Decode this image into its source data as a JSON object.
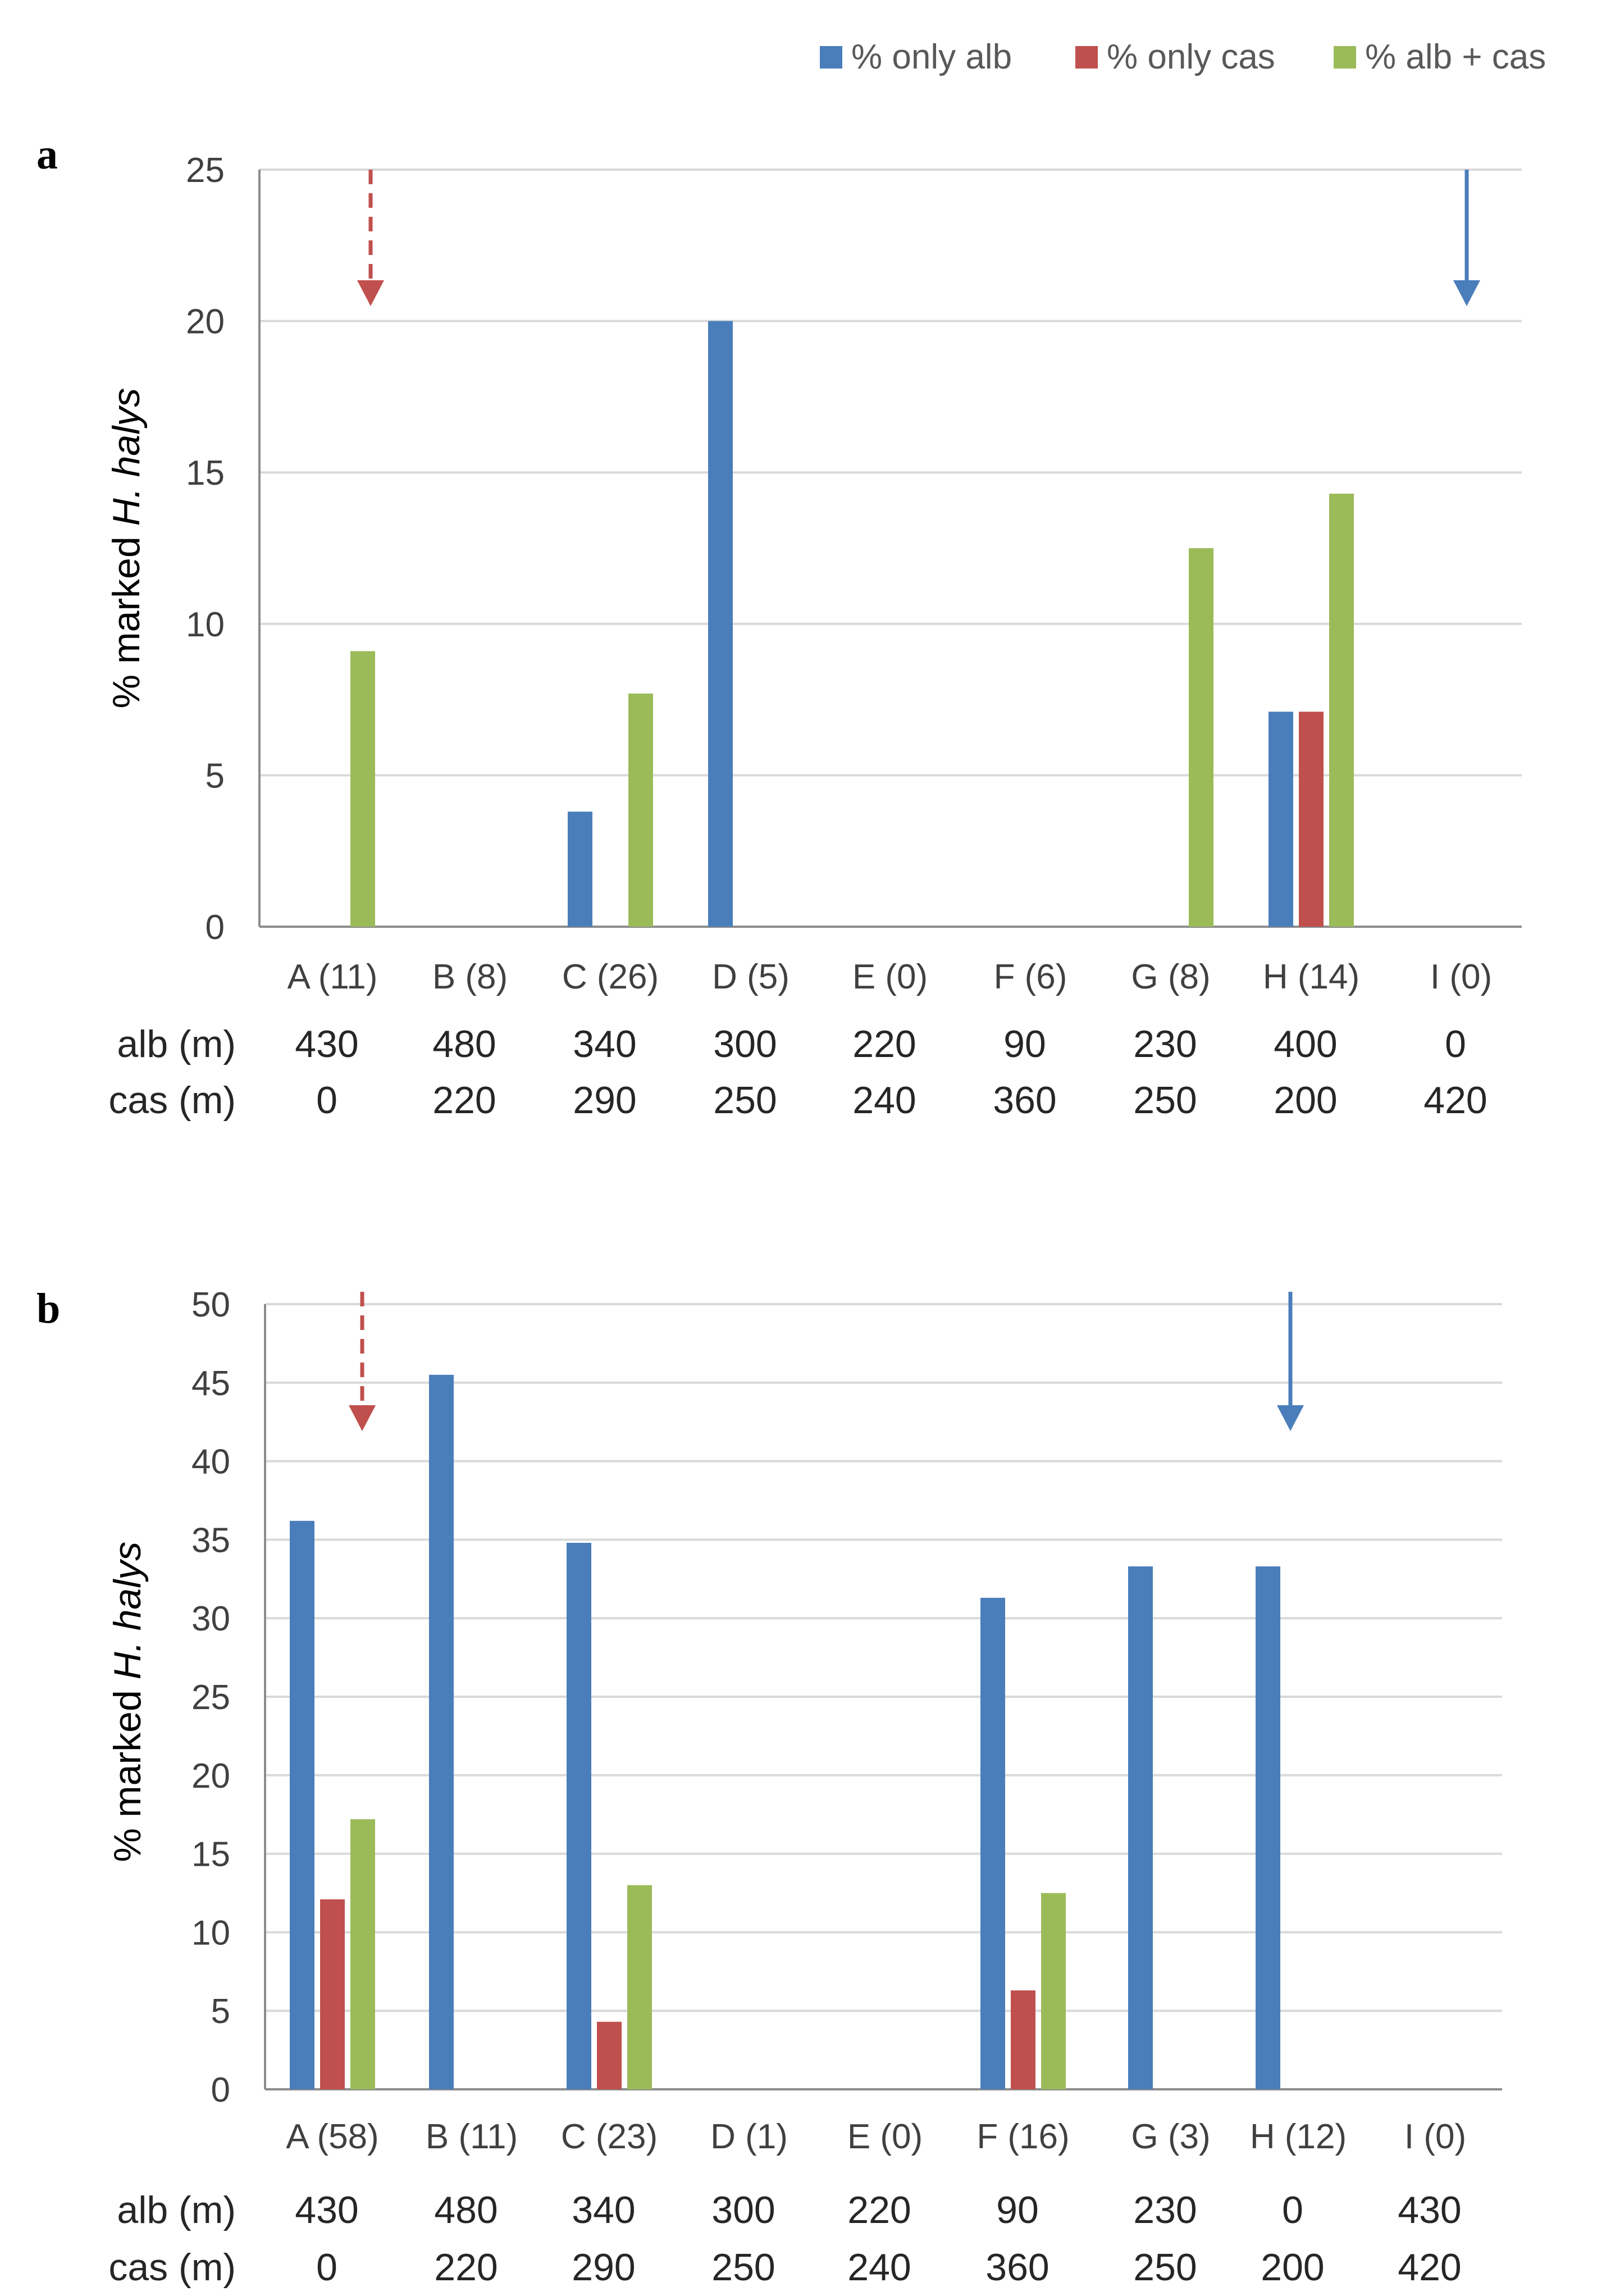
{
  "legend": [
    {
      "label": "% only alb",
      "color": "#4a7ebb"
    },
    {
      "label": "% only cas",
      "color": "#c0504d"
    },
    {
      "label": "% alb + cas",
      "color": "#9bbb59"
    }
  ],
  "arrow_colors": {
    "cas_origin": "#c0504d",
    "alb_origin": "#4a7ebb"
  },
  "chart_data": [
    {
      "panel": "a",
      "type": "bar",
      "ylabel_prefix": "% marked ",
      "ylabel_species": "H. halys",
      "ylim": [
        0,
        25
      ],
      "yticks": [
        "0",
        "5",
        "10",
        "15",
        "20",
        "25"
      ],
      "grid": true,
      "legend_position": "top-right",
      "categories": [
        "A (11)",
        "B (8)",
        "C (26)",
        "D (5)",
        "E (0)",
        "F (6)",
        "G (8)",
        "H (14)",
        "I (0)"
      ],
      "series": [
        {
          "name": "% only alb",
          "values": [
            0,
            0,
            3.8,
            20,
            0,
            0,
            0,
            7.1,
            0
          ]
        },
        {
          "name": "% only cas",
          "values": [
            0,
            0,
            0,
            0,
            0,
            0,
            0,
            7.1,
            0
          ]
        },
        {
          "name": "% alb + cas",
          "values": [
            9.1,
            0,
            7.7,
            0,
            0,
            0,
            12.5,
            14.3,
            0
          ]
        }
      ],
      "distances": [
        {
          "label": "alb (m)",
          "values": [
            "430",
            "480",
            "340",
            "300",
            "220",
            "90",
            "230",
            "400",
            "0"
          ]
        },
        {
          "label": "cas (m)",
          "values": [
            "0",
            "220",
            "290",
            "250",
            "240",
            "360",
            "250",
            "200",
            "420"
          ]
        }
      ],
      "arrows": [
        {
          "category": "A (11)",
          "kind": "cas",
          "style": "dashed"
        },
        {
          "category": "I (0)",
          "kind": "alb",
          "style": "solid"
        }
      ]
    },
    {
      "panel": "b",
      "type": "bar",
      "ylabel_prefix": "% marked ",
      "ylabel_species": "H. halys",
      "ylim": [
        0,
        50
      ],
      "yticks": [
        "0",
        "5",
        "10",
        "15",
        "20",
        "25",
        "30",
        "35",
        "40",
        "45",
        "50"
      ],
      "grid": true,
      "categories": [
        "A (58)",
        "B (11)",
        "C (23)",
        "D (1)",
        "E (0)",
        "F (16)",
        "G (3)",
        "H (12)",
        "I (0)"
      ],
      "series": [
        {
          "name": "% only alb",
          "values": [
            36.2,
            45.5,
            34.8,
            0,
            0,
            31.3,
            33.3,
            33.3,
            0
          ]
        },
        {
          "name": "% only cas",
          "values": [
            12.1,
            0,
            4.3,
            0,
            0,
            6.3,
            0,
            0,
            0
          ]
        },
        {
          "name": "% alb + cas",
          "values": [
            17.2,
            0,
            13.0,
            0,
            0,
            12.5,
            0,
            0,
            0
          ]
        }
      ],
      "distances": [
        {
          "label": "alb (m)",
          "values": [
            "430",
            "480",
            "340",
            "300",
            "220",
            "90",
            "230",
            "0",
            "430"
          ]
        },
        {
          "label": "cas (m)",
          "values": [
            "0",
            "220",
            "290",
            "250",
            "240",
            "360",
            "250",
            "200",
            "420"
          ]
        }
      ],
      "arrows": [
        {
          "category": "A (58)",
          "kind": "cas",
          "style": "dashed"
        },
        {
          "category": "H (12)",
          "kind": "alb",
          "style": "solid"
        }
      ]
    }
  ]
}
